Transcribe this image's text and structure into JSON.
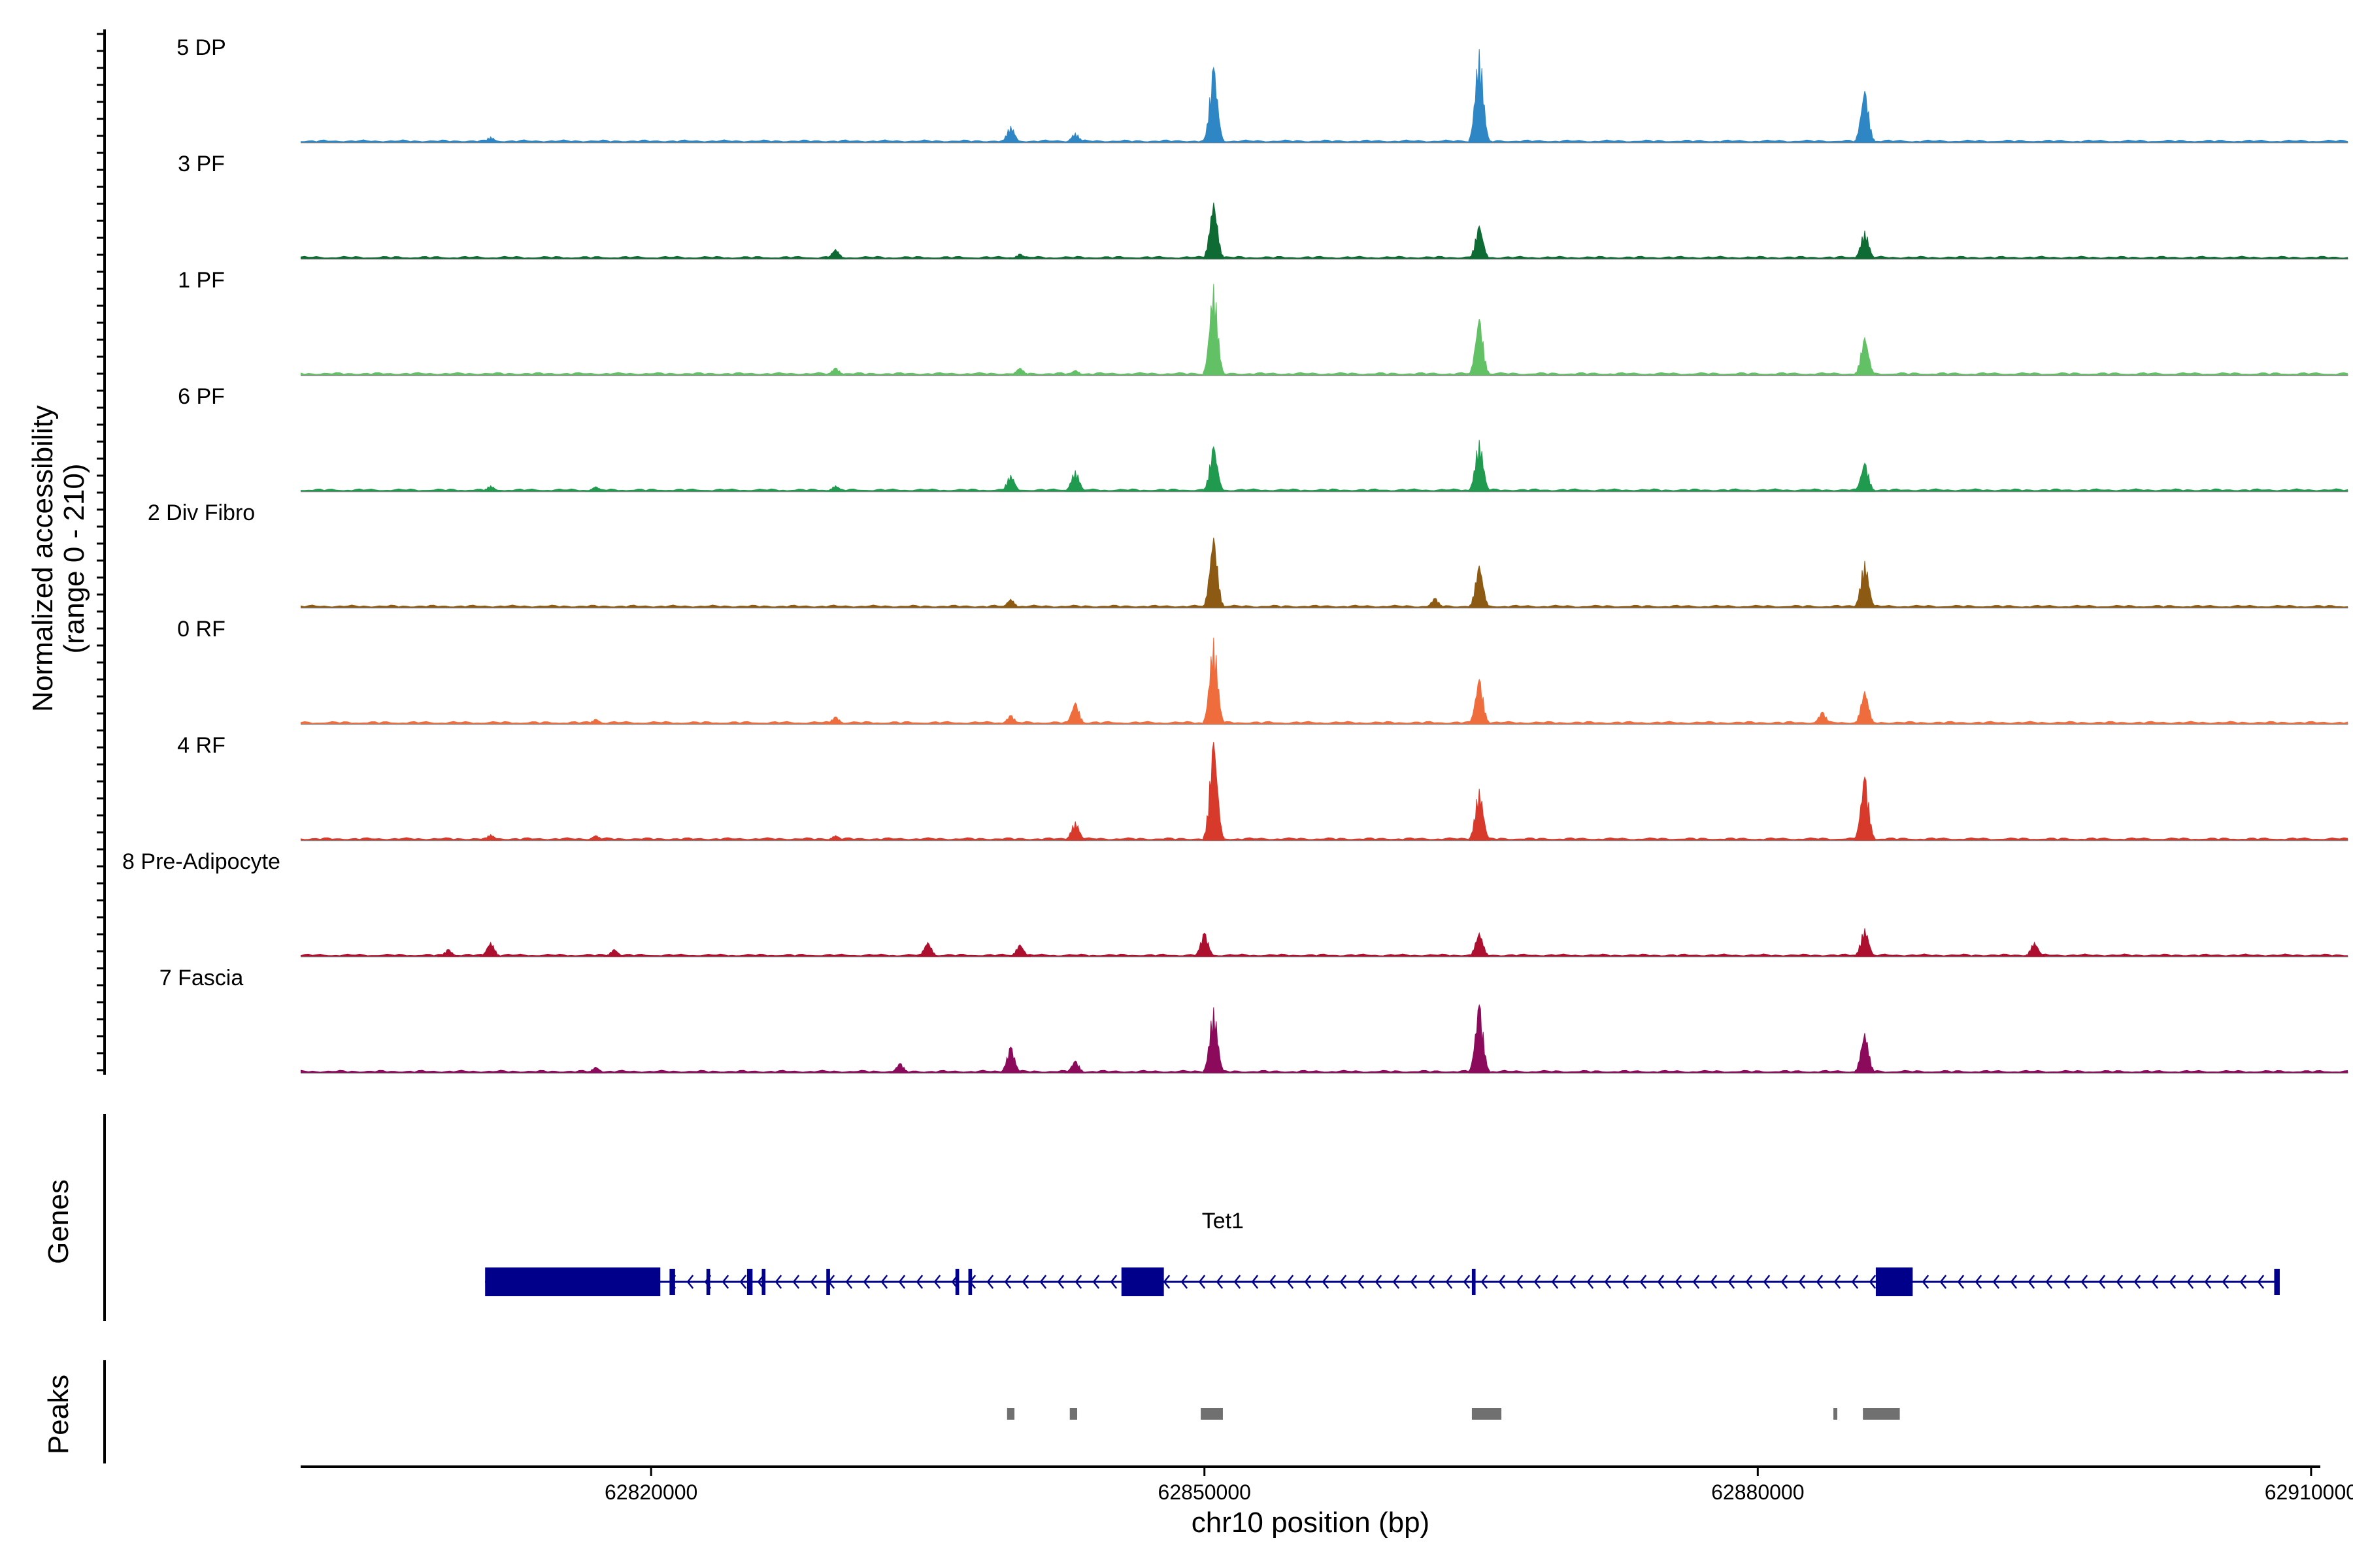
{
  "chart_data": {
    "type": "area",
    "title": "",
    "ylabel": "Normalized accessibility\n(range 0 - 210)",
    "ylim": [
      0,
      210
    ],
    "xlabel": "chr10 position (bp)",
    "xlim": [
      62801000,
      62910500
    ],
    "x_ticks": [
      62820000,
      62850000,
      62880000,
      62910000
    ],
    "x_tick_labels": [
      "62820000",
      "62850000",
      "62880000",
      "62910000"
    ],
    "track_extent": [
      62801000,
      62912000
    ],
    "series": [
      {
        "name": "5 DP",
        "color": "#2f86c5",
        "peaks": [
          [
            62811300,
            12
          ],
          [
            62839500,
            35
          ],
          [
            62843000,
            20
          ],
          [
            62850500,
            160
          ],
          [
            62864900,
            200
          ],
          [
            62885800,
            110
          ]
        ]
      },
      {
        "name": "3 PF",
        "color": "#0d6b33",
        "peaks": [
          [
            62830000,
            20
          ],
          [
            62840000,
            10
          ],
          [
            62850500,
            120
          ],
          [
            62864900,
            70
          ],
          [
            62885800,
            60
          ]
        ]
      },
      {
        "name": "1 PF",
        "color": "#62c065",
        "peaks": [
          [
            62830000,
            15
          ],
          [
            62840000,
            15
          ],
          [
            62843000,
            10
          ],
          [
            62850500,
            195
          ],
          [
            62864900,
            120
          ],
          [
            62885800,
            80
          ]
        ]
      },
      {
        "name": "6 PF",
        "color": "#1f9a4e",
        "peaks": [
          [
            62811300,
            12
          ],
          [
            62817000,
            10
          ],
          [
            62830000,
            12
          ],
          [
            62839500,
            35
          ],
          [
            62843000,
            45
          ],
          [
            62850500,
            95
          ],
          [
            62864900,
            110
          ],
          [
            62885800,
            60
          ]
        ]
      },
      {
        "name": "2 Div Fibro",
        "color": "#8c5a12",
        "peaks": [
          [
            62839500,
            18
          ],
          [
            62850500,
            150
          ],
          [
            62862500,
            20
          ],
          [
            62864900,
            90
          ],
          [
            62885800,
            100
          ]
        ]
      },
      {
        "name": "0 RF",
        "color": "#ef6d3d",
        "peaks": [
          [
            62817000,
            10
          ],
          [
            62830000,
            15
          ],
          [
            62839500,
            18
          ],
          [
            62843000,
            45
          ],
          [
            62850500,
            185
          ],
          [
            62864900,
            95
          ],
          [
            62883500,
            25
          ],
          [
            62885800,
            70
          ]
        ]
      },
      {
        "name": "4 RF",
        "color": "#d7392b",
        "peaks": [
          [
            62811300,
            12
          ],
          [
            62817000,
            10
          ],
          [
            62830000,
            10
          ],
          [
            62843000,
            40
          ],
          [
            62850500,
            210
          ],
          [
            62864900,
            110
          ],
          [
            62885800,
            135
          ]
        ]
      },
      {
        "name": "8 Pre-Adipocyte",
        "color": "#ad0f2f",
        "peaks": [
          [
            62809000,
            15
          ],
          [
            62811300,
            30
          ],
          [
            62818000,
            15
          ],
          [
            62835000,
            30
          ],
          [
            62840000,
            25
          ],
          [
            62850000,
            50
          ],
          [
            62864900,
            50
          ],
          [
            62885800,
            60
          ],
          [
            62895000,
            30
          ]
        ]
      },
      {
        "name": "7 Fascia",
        "color": "#8b0a5b",
        "peaks": [
          [
            62817000,
            12
          ],
          [
            62833500,
            20
          ],
          [
            62839500,
            55
          ],
          [
            62843000,
            25
          ],
          [
            62850500,
            140
          ],
          [
            62864900,
            145
          ],
          [
            62885800,
            85
          ]
        ]
      }
    ],
    "genes": [
      {
        "name": "Tet1",
        "strand": "-",
        "start": 62811000,
        "end": 62908000,
        "exons": [
          [
            62811000,
            62820500
          ],
          [
            62821000,
            62821300
          ],
          [
            62823000,
            62823200
          ],
          [
            62825200,
            62825500
          ],
          [
            62826000,
            62826200
          ],
          [
            62829500,
            62829700
          ],
          [
            62836500,
            62836700
          ],
          [
            62837200,
            62837400
          ],
          [
            62845500,
            62847800
          ],
          [
            62864500,
            62864700
          ],
          [
            62886400,
            62888400
          ],
          [
            62908000,
            62908300
          ]
        ]
      }
    ],
    "peaks_track": [
      [
        62839300,
        62839700
      ],
      [
        62842700,
        62843100
      ],
      [
        62849800,
        62851000
      ],
      [
        62864500,
        62866100
      ],
      [
        62884100,
        62884300
      ],
      [
        62885700,
        62887700
      ]
    ]
  },
  "labels": {
    "y_title_line1": "Normalized accessibility",
    "y_title_line2": "(range 0 - 210)",
    "genes_title": "Genes",
    "peaks_title": "Peaks",
    "x_title": "chr10 position (bp)"
  },
  "colors": {
    "gene": "#00008b",
    "peak_region": "#707070",
    "baseline": "#7f7f7f",
    "axis": "#000000"
  }
}
